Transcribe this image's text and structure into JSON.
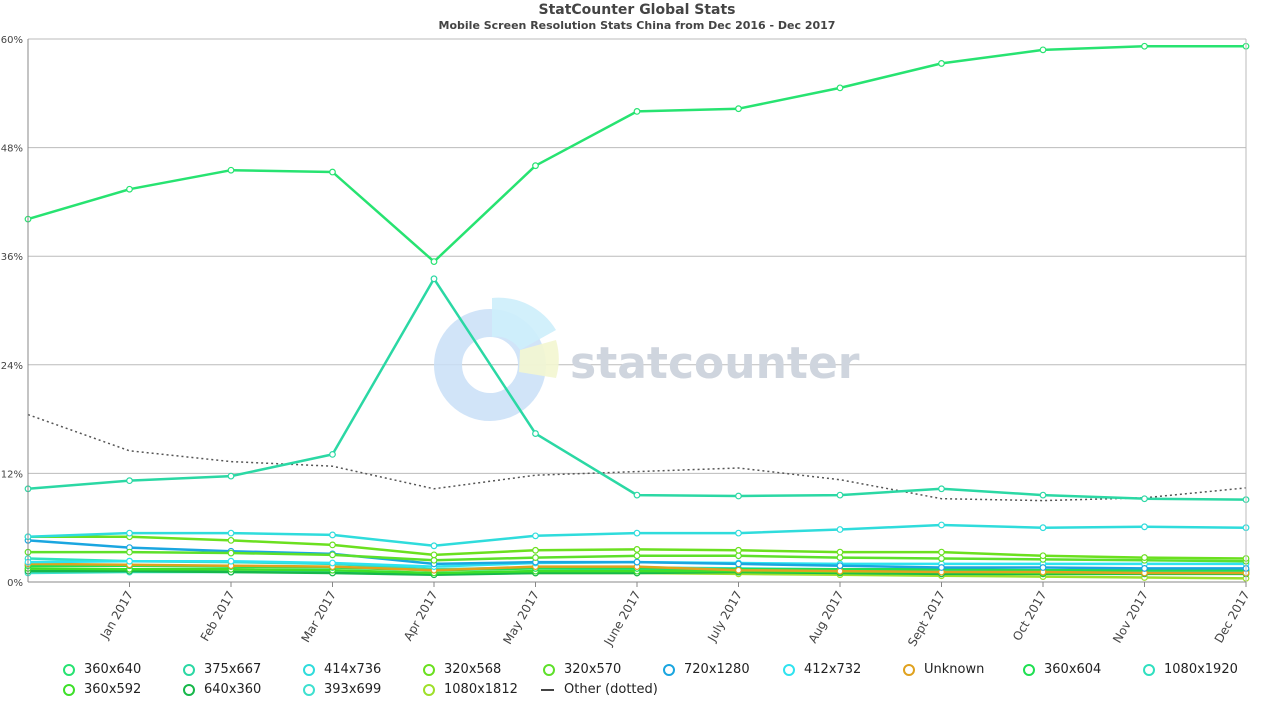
{
  "chart_data": {
    "type": "line",
    "title": "StatCounter Global Stats",
    "subtitle": "Mobile Screen Resolution Stats China from Dec 2016 - Dec 2017",
    "watermark": "statcounter",
    "x": [
      "Dec 2016",
      "Jan 2017",
      "Feb 2017",
      "Mar 2017",
      "Apr 2017",
      "May 2017",
      "June 2017",
      "July 2017",
      "Aug 2017",
      "Sept 2017",
      "Oct 2017",
      "Nov 2017",
      "Dec 2017"
    ],
    "x_tick_labels": [
      "Jan 2017",
      "Feb 2017",
      "Mar 2017",
      "Apr 2017",
      "May 2017",
      "June 2017",
      "July 2017",
      "Aug 2017",
      "Sept 2017",
      "Oct 2017",
      "Nov 2017",
      "Dec 2017"
    ],
    "ylim": [
      0,
      60
    ],
    "y_ticks": [
      0,
      12,
      24,
      36,
      48,
      60
    ],
    "y_tick_labels": [
      "0%",
      "12%",
      "24%",
      "36%",
      "48%",
      "60%"
    ],
    "grid": true,
    "legend_position": "bottom",
    "series": [
      {
        "name": "360x640",
        "color": "#27e371",
        "values": [
          40.1,
          43.4,
          45.5,
          45.3,
          35.4,
          46.0,
          52.0,
          52.3,
          54.6,
          57.3,
          58.8,
          59.2,
          59.2
        ]
      },
      {
        "name": "375x667",
        "color": "#2bd8a4",
        "values": [
          10.3,
          11.2,
          11.7,
          14.1,
          33.5,
          16.4,
          9.6,
          9.5,
          9.6,
          10.3,
          9.6,
          9.2,
          9.1
        ]
      },
      {
        "name": "414x736",
        "color": "#2fdcdc",
        "values": [
          5.0,
          5.4,
          5.4,
          5.2,
          4.0,
          5.1,
          5.4,
          5.4,
          5.8,
          6.3,
          6.0,
          6.1,
          6.0
        ]
      },
      {
        "name": "320x568",
        "color": "#6be01f",
        "values": [
          5.0,
          5.0,
          4.6,
          4.1,
          3.0,
          3.5,
          3.6,
          3.5,
          3.3,
          3.3,
          2.9,
          2.7,
          2.6
        ]
      },
      {
        "name": "320x570",
        "color": "#5ee02a",
        "values": [
          3.3,
          3.3,
          3.2,
          3.0,
          2.4,
          2.7,
          2.9,
          2.9,
          2.7,
          2.6,
          2.5,
          2.4,
          2.3
        ]
      },
      {
        "name": "720x1280",
        "color": "#1aa6e0",
        "values": [
          4.6,
          3.8,
          3.4,
          3.1,
          2.0,
          2.2,
          2.2,
          2.0,
          1.8,
          1.6,
          1.6,
          1.5,
          1.5
        ]
      },
      {
        "name": "412x732",
        "color": "#2fe3f0",
        "values": [
          2.2,
          2.3,
          2.3,
          2.1,
          1.7,
          2.1,
          2.2,
          2.1,
          2.0,
          2.0,
          2.0,
          2.0,
          2.0
        ]
      },
      {
        "name": "Unknown",
        "color": "#e0a21f",
        "values": [
          2.0,
          1.9,
          1.8,
          1.7,
          1.3,
          1.7,
          1.7,
          1.3,
          1.2,
          1.1,
          1.1,
          1.0,
          1.0
        ]
      },
      {
        "name": "360x604",
        "color": "#1fe052",
        "values": [
          1.8,
          1.8,
          1.7,
          1.6,
          1.3,
          1.5,
          1.5,
          1.4,
          1.4,
          1.4,
          1.3,
          1.3,
          1.3
        ]
      },
      {
        "name": "1080x1920",
        "color": "#2fe0c0",
        "values": [
          2.6,
          2.3,
          2.2,
          2.0,
          1.4,
          1.6,
          1.6,
          1.5,
          1.4,
          1.3,
          1.2,
          1.2,
          1.2
        ]
      },
      {
        "name": "360x592",
        "color": "#3de02a",
        "values": [
          1.5,
          1.4,
          1.4,
          1.3,
          1.0,
          1.2,
          1.2,
          1.2,
          1.1,
          1.1,
          1.0,
          1.0,
          1.0
        ]
      },
      {
        "name": "640x360",
        "color": "#16b84a",
        "values": [
          1.2,
          1.2,
          1.1,
          1.0,
          0.8,
          1.0,
          1.0,
          1.1,
          1.0,
          0.9,
          0.9,
          0.9,
          0.9
        ]
      },
      {
        "name": "393x699",
        "color": "#3ee0d0",
        "values": [
          1.0,
          1.1,
          1.1,
          1.1,
          0.9,
          1.2,
          1.3,
          1.2,
          1.2,
          1.2,
          1.2,
          1.2,
          1.2
        ]
      },
      {
        "name": "1080x1812",
        "color": "#9ee02a",
        "values": [
          1.4,
          1.4,
          1.3,
          1.2,
          0.9,
          1.0,
          1.0,
          0.9,
          0.8,
          0.7,
          0.6,
          0.5,
          0.4
        ]
      },
      {
        "name": "Other (dotted)",
        "color": "#555555",
        "dotted": true,
        "values": [
          18.5,
          14.5,
          13.3,
          12.8,
          10.3,
          11.8,
          12.2,
          12.6,
          11.3,
          9.2,
          9.0,
          9.3,
          10.4
        ]
      }
    ]
  }
}
